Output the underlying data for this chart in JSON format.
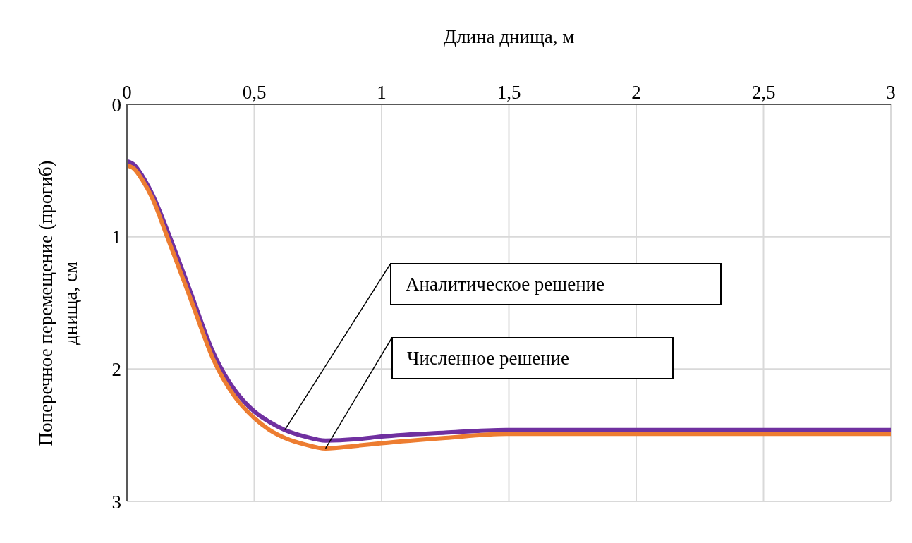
{
  "chart_data": {
    "type": "line",
    "xlabel": "Длина днища, м",
    "ylabel": "Поперечное перемещение (прогиб) днища, см",
    "x": [
      0,
      0.03,
      0.06,
      0.1,
      0.158,
      0.25,
      0.34,
      0.42,
      0.5,
      0.56,
      0.62,
      0.7,
      0.78,
      0.9,
      1.0,
      1.25,
      1.49,
      2.0,
      2.5,
      3.0
    ],
    "series": [
      {
        "color": "#7030a0",
        "values": [
          0.43,
          0.46,
          0.54,
          0.68,
          0.95,
          1.42,
          1.88,
          2.15,
          2.32,
          2.4,
          2.46,
          2.51,
          2.54,
          2.53,
          2.51,
          2.48,
          2.46,
          2.46,
          2.46,
          2.46
        ]
      },
      {
        "color": "#ed7d31",
        "values": [
          0.46,
          0.49,
          0.57,
          0.71,
          1.0,
          1.47,
          1.93,
          2.2,
          2.37,
          2.46,
          2.52,
          2.57,
          2.6,
          2.58,
          2.56,
          2.52,
          2.49,
          2.49,
          2.49,
          2.49
        ]
      }
    ],
    "xlim": [
      0,
      3
    ],
    "xticks": [
      0,
      {
        "value": 0.5,
        "label": "0,5"
      },
      1,
      {
        "value": 1.5,
        "label": "1,5"
      },
      2,
      {
        "value": 2.5,
        "label": "2,5"
      },
      3
    ],
    "ylim": [
      3,
      0
    ],
    "yticks": [
      0,
      1,
      2,
      3
    ],
    "grid": true,
    "marker": "none",
    "line_style": "solid",
    "annotations": [
      {
        "text": "Аналитическое решение",
        "x": 0.62,
        "y": 2.46
      },
      {
        "text": "Численное решение",
        "x": 0.78,
        "y": 2.6
      }
    ]
  }
}
